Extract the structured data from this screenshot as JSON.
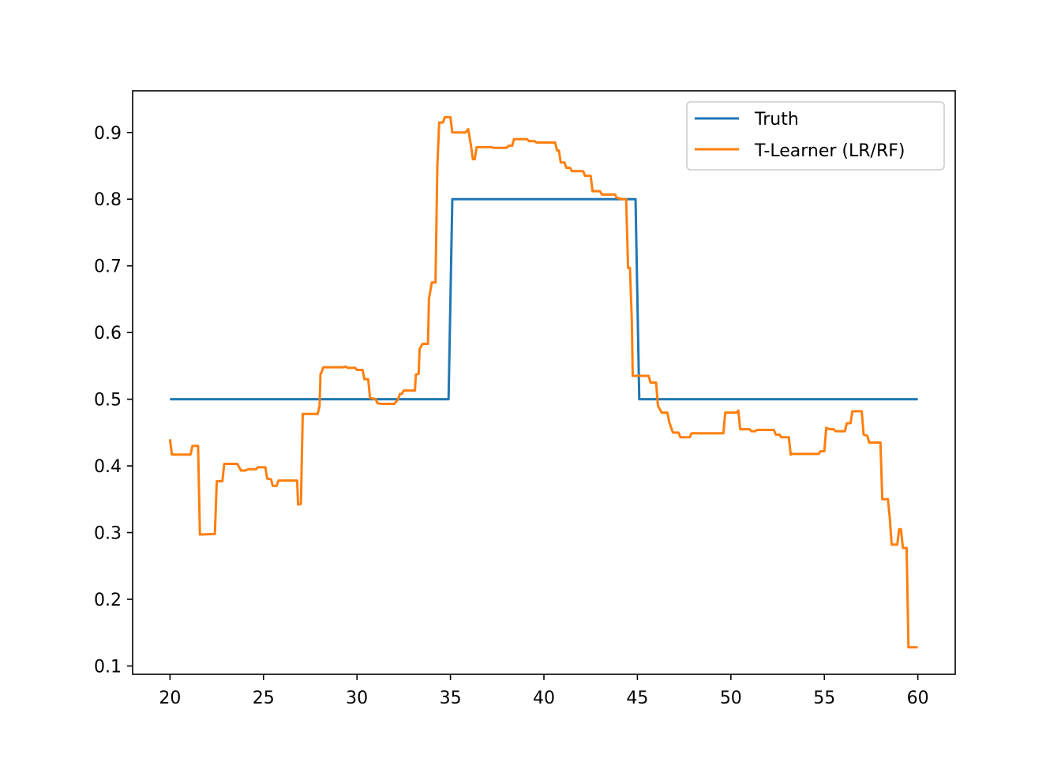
{
  "chart_data": {
    "type": "line",
    "title": "",
    "xlabel": "",
    "ylabel": "",
    "xlim": [
      18,
      62
    ],
    "ylim": [
      0.0875,
      0.9625
    ],
    "x_ticks": [
      20,
      25,
      30,
      35,
      40,
      45,
      50,
      55,
      60
    ],
    "y_ticks": [
      0.1,
      0.2,
      0.3,
      0.4,
      0.5,
      0.6,
      0.7,
      0.8,
      0.9
    ],
    "x_tick_labels": [
      "20",
      "25",
      "30",
      "35",
      "40",
      "45",
      "50",
      "55",
      "60"
    ],
    "y_tick_labels": [
      "0.1",
      "0.2",
      "0.3",
      "0.4",
      "0.5",
      "0.6",
      "0.7",
      "0.8",
      "0.9"
    ],
    "grid": false,
    "legend_position": "top-right",
    "series": [
      {
        "name": "Truth",
        "color": "#1f77b4",
        "points": [
          [
            20,
            0.5
          ],
          [
            34.9,
            0.5
          ],
          [
            35.1,
            0.8
          ],
          [
            44.9,
            0.8
          ],
          [
            45.1,
            0.5
          ],
          [
            60,
            0.5
          ]
        ]
      },
      {
        "name": "T-Learner (LR/RF)",
        "color": "#ff7f0e",
        "points": [
          [
            20,
            0.44
          ],
          [
            20.1,
            0.417
          ],
          [
            21,
            0.417
          ],
          [
            21.1,
            0.417
          ],
          [
            21.2,
            0.43
          ],
          [
            21.5,
            0.43
          ],
          [
            21.6,
            0.297
          ],
          [
            22.4,
            0.298
          ],
          [
            22.5,
            0.377
          ],
          [
            22.8,
            0.377
          ],
          [
            22.9,
            0.403
          ],
          [
            23.6,
            0.403
          ],
          [
            23.8,
            0.393
          ],
          [
            24,
            0.393
          ],
          [
            24.2,
            0.395
          ],
          [
            24.6,
            0.395
          ],
          [
            24.7,
            0.398
          ],
          [
            25.1,
            0.398
          ],
          [
            25.2,
            0.381
          ],
          [
            25.4,
            0.38
          ],
          [
            25.5,
            0.37
          ],
          [
            25.7,
            0.37
          ],
          [
            25.8,
            0.378
          ],
          [
            26.8,
            0.378
          ],
          [
            26.85,
            0.342
          ],
          [
            27,
            0.343
          ],
          [
            27.1,
            0.478
          ],
          [
            27.9,
            0.478
          ],
          [
            28,
            0.49
          ],
          [
            28.05,
            0.538
          ],
          [
            28.1,
            0.54
          ],
          [
            28.2,
            0.548
          ],
          [
            29.3,
            0.548
          ],
          [
            29.4,
            0.549
          ],
          [
            29.5,
            0.547
          ],
          [
            29.9,
            0.547
          ],
          [
            30,
            0.544
          ],
          [
            30.3,
            0.544
          ],
          [
            30.4,
            0.53
          ],
          [
            30.6,
            0.53
          ],
          [
            30.7,
            0.502
          ],
          [
            31,
            0.5
          ],
          [
            31.1,
            0.494
          ],
          [
            31.3,
            0.493
          ],
          [
            32,
            0.493
          ],
          [
            32.2,
            0.5
          ],
          [
            32.3,
            0.508
          ],
          [
            32.4,
            0.508
          ],
          [
            32.5,
            0.513
          ],
          [
            33.1,
            0.513
          ],
          [
            33.15,
            0.537
          ],
          [
            33.3,
            0.538
          ],
          [
            33.35,
            0.575
          ],
          [
            33.5,
            0.583
          ],
          [
            33.8,
            0.583
          ],
          [
            33.85,
            0.65
          ],
          [
            34,
            0.675
          ],
          [
            34.2,
            0.675
          ],
          [
            34.3,
            0.85
          ],
          [
            34.4,
            0.915
          ],
          [
            34.6,
            0.915
          ],
          [
            34.7,
            0.923
          ],
          [
            35,
            0.923
          ],
          [
            35.1,
            0.9
          ],
          [
            35.8,
            0.9
          ],
          [
            35.95,
            0.905
          ],
          [
            36.1,
            0.88
          ],
          [
            36.2,
            0.86
          ],
          [
            36.3,
            0.86
          ],
          [
            36.4,
            0.878
          ],
          [
            37.2,
            0.878
          ],
          [
            37.3,
            0.877
          ],
          [
            38,
            0.877
          ],
          [
            38.1,
            0.88
          ],
          [
            38.3,
            0.88
          ],
          [
            38.4,
            0.89
          ],
          [
            39.1,
            0.89
          ],
          [
            39.2,
            0.887
          ],
          [
            39.5,
            0.887
          ],
          [
            39.6,
            0.885
          ],
          [
            40.6,
            0.885
          ],
          [
            40.7,
            0.873
          ],
          [
            40.8,
            0.873
          ],
          [
            40.9,
            0.855
          ],
          [
            41.1,
            0.855
          ],
          [
            41.2,
            0.847
          ],
          [
            41.4,
            0.847
          ],
          [
            41.5,
            0.842
          ],
          [
            42.1,
            0.842
          ],
          [
            42.2,
            0.835
          ],
          [
            42.5,
            0.835
          ],
          [
            42.6,
            0.812
          ],
          [
            43,
            0.812
          ],
          [
            43.1,
            0.807
          ],
          [
            43.8,
            0.807
          ],
          [
            43.9,
            0.802
          ],
          [
            44.2,
            0.8
          ],
          [
            44.3,
            0.8
          ],
          [
            44.4,
            0.8
          ],
          [
            44.5,
            0.697
          ],
          [
            44.6,
            0.697
          ],
          [
            44.7,
            0.62
          ],
          [
            44.75,
            0.535
          ],
          [
            45.6,
            0.535
          ],
          [
            45.7,
            0.525
          ],
          [
            46,
            0.525
          ],
          [
            46.1,
            0.49
          ],
          [
            46.3,
            0.48
          ],
          [
            46.6,
            0.48
          ],
          [
            46.7,
            0.466
          ],
          [
            46.9,
            0.45
          ],
          [
            47.2,
            0.45
          ],
          [
            47.3,
            0.443
          ],
          [
            47.8,
            0.443
          ],
          [
            47.9,
            0.449
          ],
          [
            49.6,
            0.449
          ],
          [
            49.7,
            0.48
          ],
          [
            50.3,
            0.48
          ],
          [
            50.4,
            0.483
          ],
          [
            50.5,
            0.455
          ],
          [
            51,
            0.455
          ],
          [
            51.1,
            0.452
          ],
          [
            51.3,
            0.452
          ],
          [
            51.4,
            0.454
          ],
          [
            52.3,
            0.454
          ],
          [
            52.4,
            0.447
          ],
          [
            52.6,
            0.447
          ],
          [
            52.7,
            0.443
          ],
          [
            53.1,
            0.443
          ],
          [
            53.2,
            0.417
          ],
          [
            53.3,
            0.418
          ],
          [
            54.7,
            0.418
          ],
          [
            54.8,
            0.422
          ],
          [
            55,
            0.422
          ],
          [
            55.1,
            0.457
          ],
          [
            55.3,
            0.455
          ],
          [
            55.5,
            0.455
          ],
          [
            55.6,
            0.452
          ],
          [
            56.1,
            0.452
          ],
          [
            56.2,
            0.464
          ],
          [
            56.4,
            0.464
          ],
          [
            56.5,
            0.482
          ],
          [
            57,
            0.482
          ],
          [
            57.1,
            0.447
          ],
          [
            57.3,
            0.445
          ],
          [
            57.4,
            0.435
          ],
          [
            58,
            0.435
          ],
          [
            58.1,
            0.35
          ],
          [
            58.4,
            0.35
          ],
          [
            58.5,
            0.322
          ],
          [
            58.6,
            0.282
          ],
          [
            58.9,
            0.282
          ],
          [
            59,
            0.305
          ],
          [
            59.1,
            0.305
          ],
          [
            59.2,
            0.277
          ],
          [
            59.4,
            0.277
          ],
          [
            59.5,
            0.128
          ],
          [
            60,
            0.128
          ]
        ]
      }
    ]
  }
}
